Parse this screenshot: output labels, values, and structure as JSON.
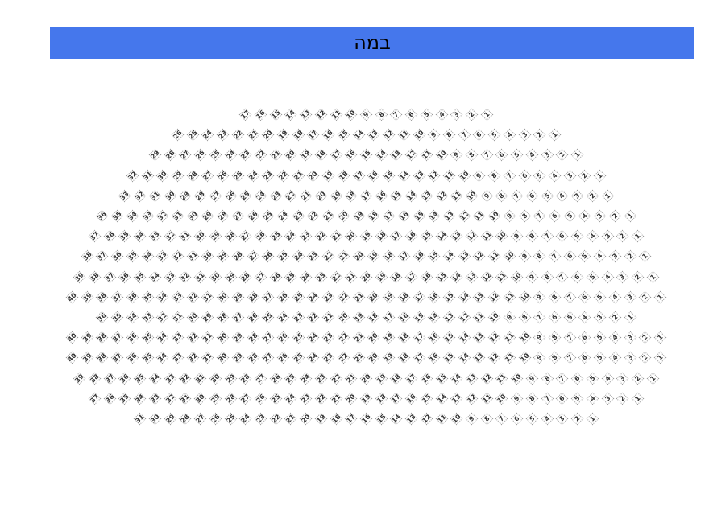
{
  "stage": {
    "label": "במה",
    "color": "#4577ec"
  },
  "rows": [
    {
      "from": 17,
      "to": 1
    },
    {
      "from": 26,
      "to": 1
    },
    {
      "from": 29,
      "to": 1
    },
    {
      "from": 32,
      "to": 1
    },
    {
      "from": 33,
      "to": 1
    },
    {
      "from": 36,
      "to": 1
    },
    {
      "from": 37,
      "to": 1
    },
    {
      "from": 38,
      "to": 1
    },
    {
      "from": 39,
      "to": 1
    },
    {
      "from": 40,
      "to": 1
    },
    {
      "from": 36,
      "to": 1
    },
    {
      "from": 40,
      "to": 1
    },
    {
      "from": 40,
      "to": 1
    },
    {
      "from": 39,
      "to": 1
    },
    {
      "from": 37,
      "to": 1
    },
    {
      "from": 31,
      "to": 1
    }
  ]
}
